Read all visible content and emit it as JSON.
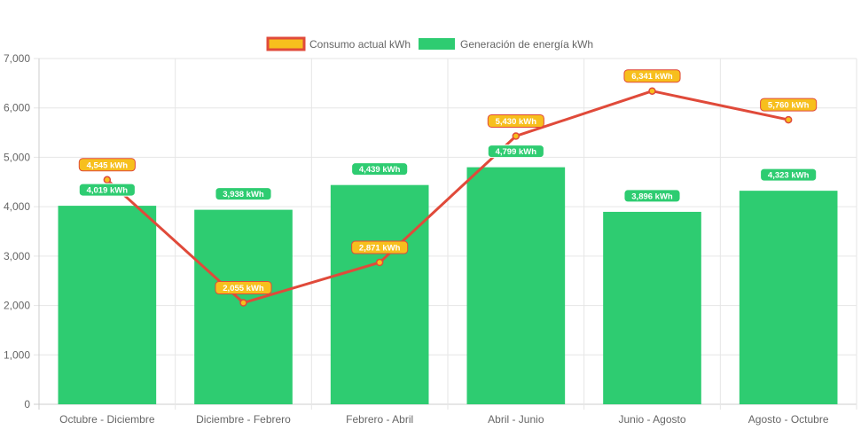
{
  "chart_data": {
    "type": "bar",
    "categories": [
      "Octubre - Diciembre",
      "Diciembre - Febrero",
      "Febrero - Abril",
      "Abril - Junio",
      "Junio - Agosto",
      "Agosto - Octubre"
    ],
    "ylim": [
      0,
      7000
    ],
    "yticks": [
      0,
      1000,
      2000,
      3000,
      4000,
      5000,
      6000,
      7000
    ],
    "ytick_labels": [
      "0",
      "1,000",
      "2,000",
      "3,000",
      "4,000",
      "5,000",
      "6,000",
      "7,000"
    ],
    "grid": true,
    "legend_position": "top-center",
    "series": [
      {
        "name": "Consumo actual kWh",
        "type": "line",
        "values": [
          4545,
          2055,
          2871,
          5430,
          6341,
          5760
        ],
        "data_labels": [
          "4,545 kWh",
          "2,055 kWh",
          "2,871 kWh",
          "5,430 kWh",
          "6,341 kWh",
          "5,760 kWh"
        ],
        "color": "#e04a3a",
        "fill_color": "#f7bf1d"
      },
      {
        "name": "Generación de energía kWh",
        "type": "bar",
        "values": [
          4019,
          3938,
          4439,
          4799,
          3896,
          4323
        ],
        "data_labels": [
          "4,019 kWh",
          "3,938 kWh",
          "4,439 kWh",
          "4,799 kWh",
          "3,896 kWh",
          "4,323 kWh"
        ],
        "color": "#2ecc71"
      }
    ]
  }
}
